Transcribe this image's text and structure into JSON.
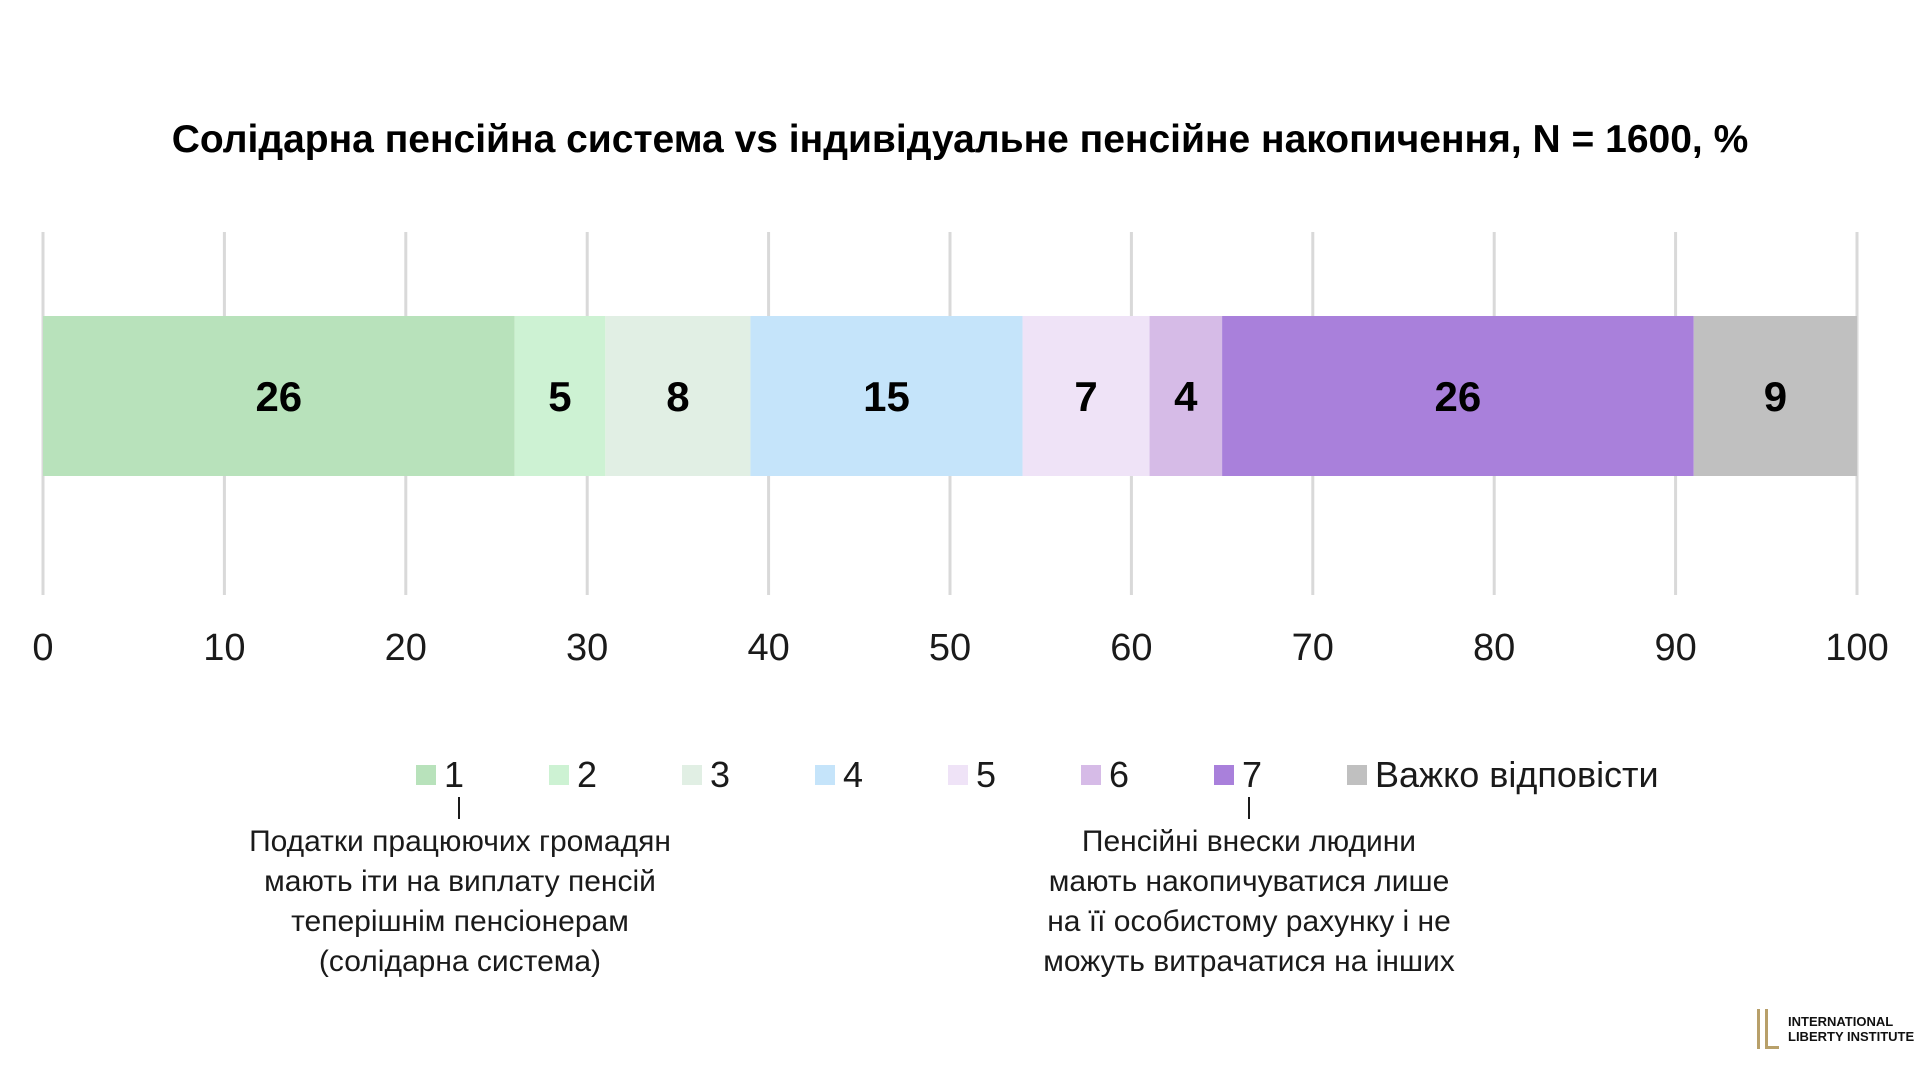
{
  "chart_data": {
    "type": "bar",
    "orientation": "horizontal-stacked",
    "title": "Солідарна пенсійна система vs індивідуальне пенсійне накопичення, N = 1600, %",
    "categories": [
      ""
    ],
    "series": [
      {
        "name": "1",
        "values": [
          26
        ],
        "color": "#b8e2bb"
      },
      {
        "name": "2",
        "values": [
          5
        ],
        "color": "#cdf2d3"
      },
      {
        "name": "3",
        "values": [
          8
        ],
        "color": "#e1efe4"
      },
      {
        "name": "4",
        "values": [
          15
        ],
        "color": "#c5e4fa"
      },
      {
        "name": "5",
        "values": [
          7
        ],
        "color": "#efe3f7"
      },
      {
        "name": "6",
        "values": [
          4
        ],
        "color": "#d6bbe7"
      },
      {
        "name": "7",
        "values": [
          26
        ],
        "color": "#a980db"
      },
      {
        "name": "Важко відповісти",
        "values": [
          9
        ],
        "color": "#c0c0c0"
      }
    ],
    "data_labels": [
      "26",
      "5",
      "8",
      "15",
      "7",
      "4",
      "26",
      "9"
    ],
    "xlim": [
      0,
      100
    ],
    "x_ticks": [
      "0",
      "10",
      "20",
      "30",
      "40",
      "50",
      "60",
      "70",
      "80",
      "90",
      "100"
    ],
    "grid": true,
    "legend_position": "bottom"
  },
  "notes": {
    "left": [
      "Податки працюючих громадян",
      "мають іти на виплату пенсій",
      "теперішнім пенсіонерам",
      "(солідарна система)"
    ],
    "right": [
      "Пенсійні внески людини",
      "мають накопичуватися лише",
      "на її особистому рахунку і не",
      "можуть витрачатися на інших"
    ]
  },
  "logo": {
    "line1": "INTERNATIONAL",
    "line2": "LIBERTY INSTITUTE",
    "color": "#b8a06a"
  }
}
